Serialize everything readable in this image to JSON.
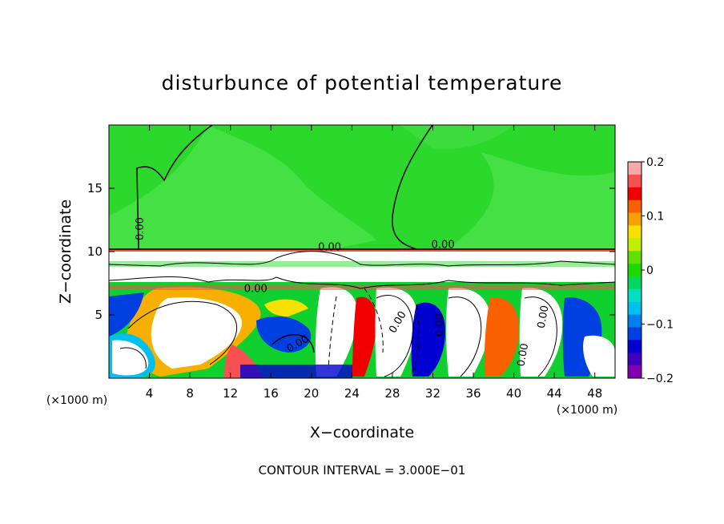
{
  "chart_data": {
    "type": "heatmap",
    "title": "disturbunce of potential temperature",
    "xlabel": "X−coordinate",
    "ylabel": "Z−coordinate",
    "x_unit": "(×1000 m)",
    "x_unit_right": "(×1000 m)",
    "xlim": [
      0,
      50
    ],
    "ylim": [
      0,
      20
    ],
    "x_ticks": [
      4,
      8,
      12,
      16,
      20,
      24,
      28,
      32,
      36,
      40,
      44,
      48
    ],
    "y_ticks": [
      5,
      10,
      15
    ],
    "colorbar": {
      "range": [
        -0.2,
        0.2
      ],
      "tick_values": [
        0.2,
        0.1,
        0,
        -0.1,
        -0.2
      ],
      "tick_labels": [
        "0.2",
        "0.1",
        "0",
        "−0.1",
        "−0.2"
      ],
      "colors": [
        "#f8a8a8",
        "#f85050",
        "#f00000",
        "#f86000",
        "#f8a000",
        "#f8e000",
        "#c0f000",
        "#60e000",
        "#20d800",
        "#00d860",
        "#00e0c0",
        "#00c0f0",
        "#0080f0",
        "#0040e0",
        "#0000d0",
        "#4000c0",
        "#8000b0"
      ]
    },
    "contour_labels": [
      {
        "text": "0.00",
        "x": 3.4,
        "y": 11.8,
        "rotate": -90
      },
      {
        "text": "0.00",
        "x": 33.0,
        "y": 10.3,
        "rotate": 0
      },
      {
        "text": "0.00",
        "x": 21.8,
        "y": 10.1,
        "rotate": 0
      },
      {
        "text": "0.00",
        "x": 14.5,
        "y": 6.8,
        "rotate": 0
      },
      {
        "text": "0.00",
        "x": 18.8,
        "y": 2.5,
        "rotate": -30
      },
      {
        "text": "0.00",
        "x": 28.8,
        "y": 4.3,
        "rotate": -60
      },
      {
        "text": "0.00",
        "x": 33.0,
        "y": 4.2,
        "rotate": -90
      },
      {
        "text": "0.00",
        "x": 41.2,
        "y": 1.8,
        "rotate": -80
      },
      {
        "text": "0.00",
        "x": 43.2,
        "y": 4.8,
        "rotate": -80
      }
    ],
    "footnote": "CONTOUR INTERVAL = 3.000E−01"
  }
}
